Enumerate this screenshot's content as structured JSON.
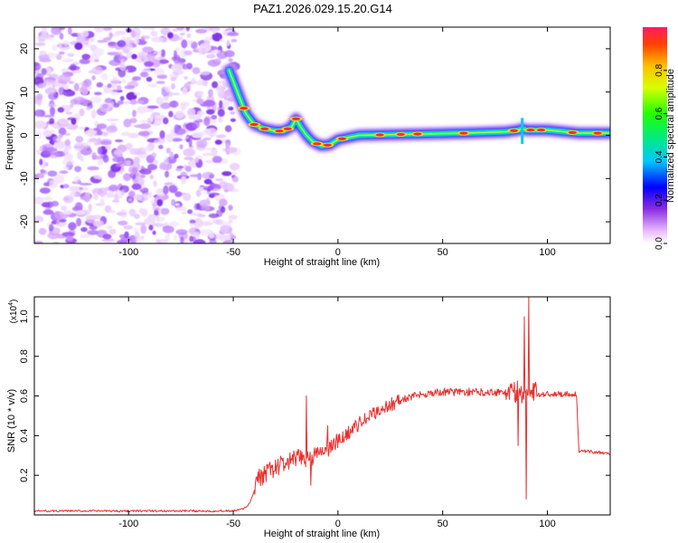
{
  "title": "PAZ1.2026.029.15.20.G14",
  "chart_data": [
    {
      "type": "heatmap",
      "xlabel": "Height of straight line (km)",
      "ylabel": "Frequency (Hz)",
      "xlim": [
        -145,
        130
      ],
      "ylim": [
        -25,
        25
      ],
      "xticks": [
        -100,
        -50,
        0,
        50,
        100
      ],
      "yticks": [
        -20,
        -10,
        0,
        10,
        20
      ],
      "noise_region_x": [
        -145,
        -49
      ],
      "ridge": {
        "x": [
          -52,
          -48,
          -44,
          -40,
          -35,
          -30,
          -26,
          -22,
          -20,
          -18,
          -15,
          -12,
          -8,
          -4,
          0,
          10,
          30,
          60,
          80,
          86,
          88,
          90,
          100,
          115,
          130
        ],
        "y": [
          15,
          10,
          5,
          2.5,
          1.5,
          1,
          1,
          2,
          3.8,
          2,
          0,
          -1.5,
          -2.4,
          -2.2,
          -1,
          0,
          0.2,
          0.5,
          0.8,
          1.2,
          1.5,
          1.2,
          1.2,
          0.5,
          0.5
        ]
      },
      "colorbar": {
        "label": "Normalized spectral amplitude",
        "ticks": [
          0.0,
          0.2,
          0.4,
          0.6,
          0.8
        ],
        "range": [
          0,
          1
        ]
      }
    },
    {
      "type": "line",
      "xlabel": "Height of straight line (km)",
      "ylabel": "SNR (10 * v/v)",
      "y_exponent_label": "(x10",
      "y_exponent_power": "4",
      "y_exponent_close": ")",
      "xlim": [
        -145,
        130
      ],
      "ylim": [
        0,
        1.1
      ],
      "xticks": [
        -100,
        -50,
        0,
        50,
        100
      ],
      "yticks": [
        0.2,
        0.4,
        0.6,
        0.8,
        1.0
      ],
      "series_color": "#e8312f",
      "keypoints": {
        "x": [
          -145,
          -50,
          -45,
          -42,
          -38,
          -30,
          -20,
          -10,
          0,
          10,
          20,
          30,
          40,
          50,
          60,
          70,
          80,
          85,
          90,
          95,
          100,
          110,
          114,
          115,
          120,
          130
        ],
        "y": [
          0.02,
          0.02,
          0.03,
          0.06,
          0.18,
          0.24,
          0.28,
          0.3,
          0.37,
          0.46,
          0.53,
          0.58,
          0.61,
          0.62,
          0.62,
          0.62,
          0.62,
          0.62,
          0.61,
          0.61,
          0.61,
          0.61,
          0.61,
          0.32,
          0.32,
          0.31
        ]
      },
      "spikes": [
        {
          "x": -15,
          "y": 0.6
        },
        {
          "x": -13,
          "y": 0.15
        },
        {
          "x": -5,
          "y": 0.45
        },
        {
          "x": 90,
          "y": 0.08
        },
        {
          "x": 91,
          "y": 1.1
        },
        {
          "x": 89,
          "y": 1.0
        },
        {
          "x": 86,
          "y": 0.35
        }
      ]
    }
  ]
}
